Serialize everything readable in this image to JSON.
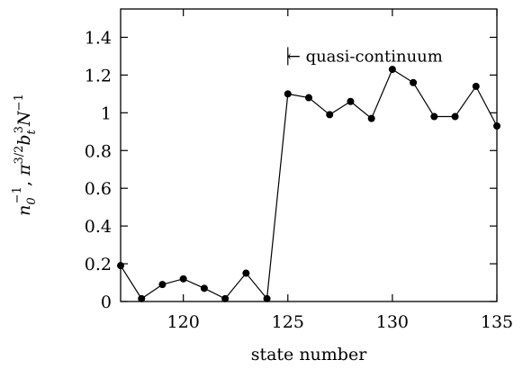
{
  "chart_data": {
    "type": "line",
    "xlabel": "state number",
    "ylabel_parts": {
      "n": "n",
      "n_sub": "0",
      "n_sup": "−1",
      "sep": ", ",
      "pi": "π",
      "pi_sup": "3/2",
      "b": "b",
      "b_sub": "t",
      "b_sup": "3",
      "N": "N",
      "N_sup": "−1"
    },
    "xlim": [
      117,
      135
    ],
    "ylim": [
      0,
      1.55
    ],
    "xticks": [
      120,
      125,
      130,
      135
    ],
    "xtick_labels": [
      "120",
      "125",
      "130",
      "135"
    ],
    "yticks": [
      0,
      0.2,
      0.4,
      0.6,
      0.8,
      1,
      1.2,
      1.4
    ],
    "ytick_labels": [
      "0",
      "0.2",
      "0.4",
      "0.6",
      "0.8",
      "1",
      "1.2",
      "1.4"
    ],
    "annotation": {
      "text": "quasi-continuum",
      "arrow": "←",
      "x": 125,
      "y": 1.3
    },
    "series": [
      {
        "x": [
          117,
          118,
          119,
          120,
          121,
          122,
          123,
          124,
          125,
          126,
          127,
          128,
          129,
          130,
          131,
          132,
          133,
          134,
          135
        ],
        "y": [
          0.19,
          0.015,
          0.09,
          0.12,
          0.07,
          0.015,
          0.15,
          0.015,
          1.1,
          1.08,
          0.99,
          1.06,
          0.97,
          1.23,
          1.16,
          0.98,
          0.98,
          1.14,
          0.93
        ]
      }
    ],
    "grid": false,
    "legend": "none"
  }
}
